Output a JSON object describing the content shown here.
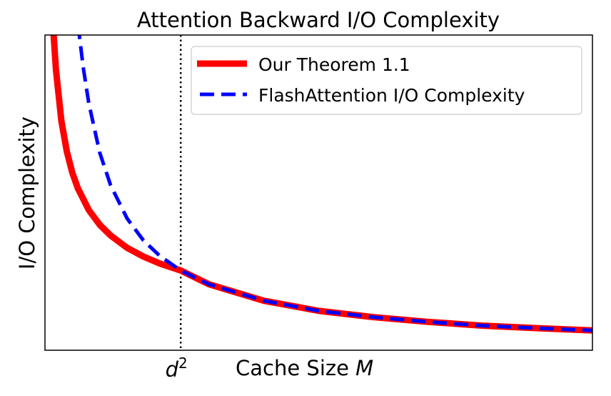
{
  "chart_data": {
    "type": "line",
    "title": "Attention Backward I/O Complexity",
    "xlabel": "Cache Size M",
    "xlabel_text": "Cache Size ",
    "xlabel_var": "M",
    "ylabel": "I/O Complexity",
    "xlim": [
      0,
      100
    ],
    "ylim": [
      0,
      100
    ],
    "grid": false,
    "legend_placement": "top-right",
    "xticks": [
      {
        "value": 24.8,
        "label": "d",
        "superscript": "2"
      }
    ],
    "vline": {
      "x": 24.8,
      "style": "dotted",
      "color": "#000000"
    },
    "series": [
      {
        "name": "Our Theorem 1.1",
        "color": "#ff0000",
        "style": "solid",
        "x": [
          1.6,
          2,
          3,
          4,
          5,
          6,
          8,
          10,
          12,
          15,
          18,
          21,
          24.8,
          30,
          40,
          50,
          60,
          70,
          80,
          90,
          100
        ],
        "y": [
          99.6,
          89.1,
          72.7,
          63,
          56.3,
          51.4,
          44.5,
          39.8,
          36.4,
          32.5,
          29.7,
          27.5,
          25.3,
          20.9,
          15.7,
          12.5,
          10.5,
          9.0,
          7.8,
          7.0,
          6.3
        ]
      },
      {
        "name": "FlashAttention I/O Complexity",
        "color": "#0000ff",
        "style": "dashed",
        "x": [
          6.3,
          7,
          8,
          10,
          12,
          15,
          18,
          21,
          24.8,
          30,
          40,
          50,
          60,
          70,
          80,
          90,
          100
        ],
        "y": [
          99.5,
          89.6,
          78.4,
          62.7,
          52.3,
          41.8,
          34.8,
          29.9,
          25.3,
          20.9,
          15.7,
          12.5,
          10.5,
          9.0,
          7.8,
          7.0,
          6.3
        ]
      }
    ]
  }
}
